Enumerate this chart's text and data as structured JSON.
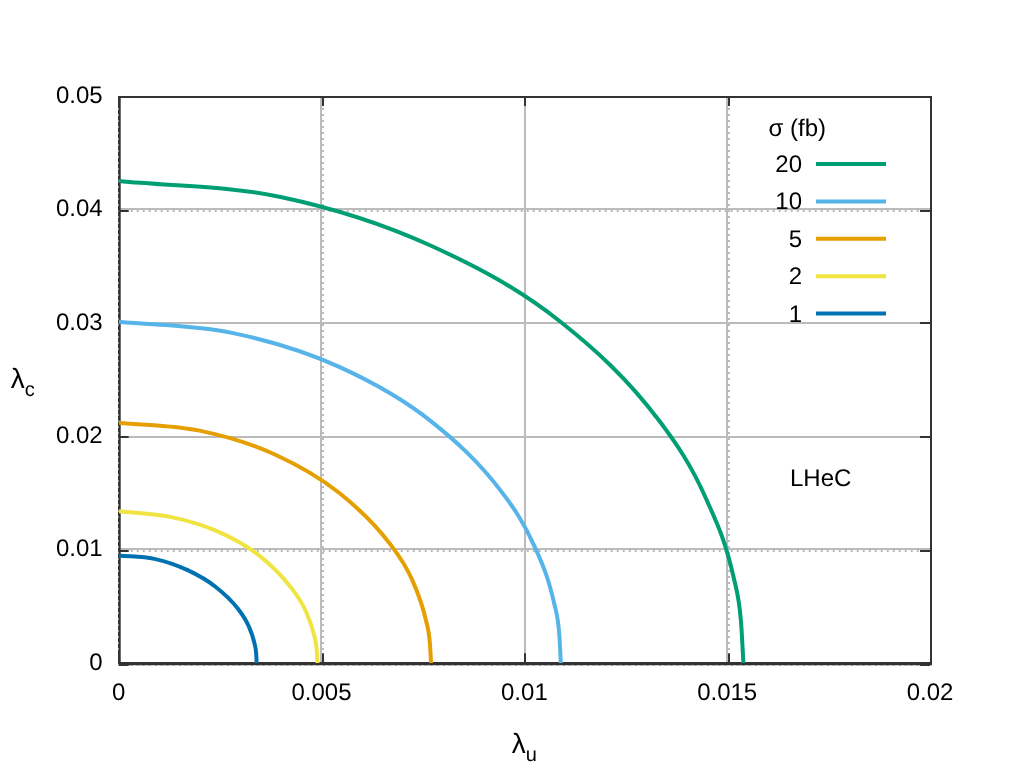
{
  "chart_data": {
    "type": "line",
    "xlabel": "λ$_{u}$",
    "ylabel": "λ$_{c}$",
    "legend_title": "σ (fb)",
    "legend": "top right",
    "grid": true,
    "marker": "none",
    "line_style": "solid",
    "xlim": [
      0,
      0.02
    ],
    "xticks": [
      0,
      0.005,
      0.01,
      0.015,
      0.02
    ],
    "ylim": [
      0,
      0.05
    ],
    "yticks": [
      0,
      0.01,
      0.02,
      0.03,
      0.04,
      0.05
    ],
    "annotations": [
      "LHeC"
    ],
    "series": [
      {
        "name": "20",
        "color": "#009e73",
        "x": [
          0,
          0.00399,
          0.0077,
          0.01089,
          0.01334,
          0.01448,
          0.01517,
          0.01534,
          0.0154
        ],
        "values": [
          0.0425,
          0.0411,
          0.0368,
          0.0301,
          0.0213,
          0.0145,
          0.0074,
          0.0037,
          0
        ]
      },
      {
        "name": "10",
        "color": "#56b4e9",
        "x": [
          0,
          0.00282,
          0.00545,
          0.00771,
          0.00944,
          0.01025,
          0.01074,
          0.01086,
          0.0109
        ],
        "values": [
          0.0301,
          0.0291,
          0.0261,
          0.0213,
          0.0151,
          0.0103,
          0.0052,
          0.0026,
          0
        ]
      },
      {
        "name": "5",
        "color": "#e69f00",
        "x": [
          0,
          0.00199,
          0.00385,
          0.00544,
          0.00667,
          0.00724,
          0.00758,
          0.00767,
          0.0077
        ],
        "values": [
          0.0212,
          0.0205,
          0.0184,
          0.015,
          0.0106,
          0.0073,
          0.0037,
          0.0018,
          0
        ]
      },
      {
        "name": "2",
        "color": "#f0e442",
        "x": [
          0,
          0.00127,
          0.00245,
          0.00346,
          0.00424,
          0.00461,
          0.00483,
          0.00488,
          0.0049
        ],
        "values": [
          0.0134,
          0.0129,
          0.0116,
          0.0095,
          0.0067,
          0.0046,
          0.0023,
          0.0012,
          0
        ]
      },
      {
        "name": "1",
        "color": "#0072b2",
        "x": [
          0,
          0.00088,
          0.0017,
          0.0024,
          0.00294,
          0.0032,
          0.00335,
          0.00339,
          0.0034
        ],
        "values": [
          0.0095,
          0.0092,
          0.0082,
          0.0067,
          0.0048,
          0.0033,
          0.0017,
          0.0008,
          0
        ]
      }
    ]
  }
}
